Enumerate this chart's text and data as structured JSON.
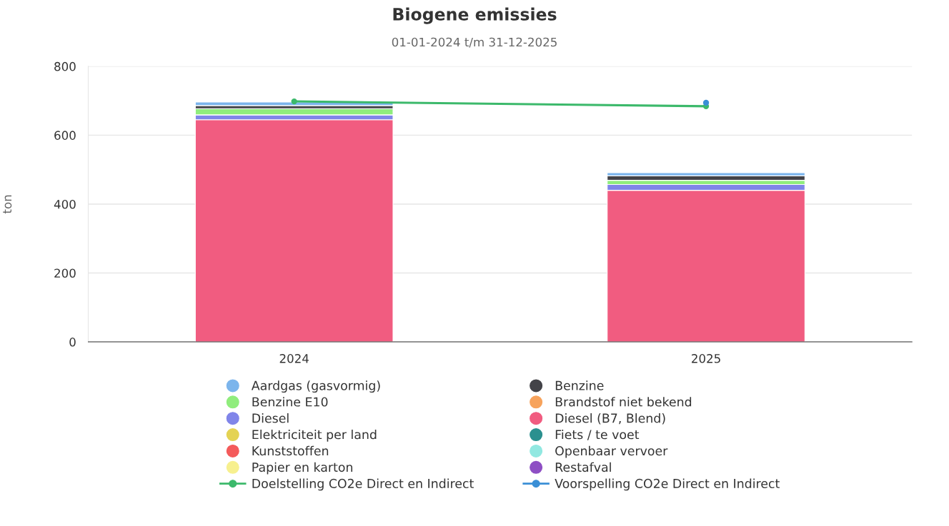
{
  "chart_data": {
    "type": "bar",
    "title": "Biogene emissies",
    "subtitle": "01-01-2024 t/m 31-12-2025",
    "ylabel": "ton",
    "categories": [
      "2024",
      "2025"
    ],
    "stacked": true,
    "ylim": [
      0,
      800
    ],
    "yticks": [
      0,
      200,
      400,
      600,
      800
    ],
    "grid": "y",
    "legend": "bottom",
    "series": [
      {
        "name": "Restafval",
        "color": "#8e4fc4",
        "values": [
          0,
          0
        ]
      },
      {
        "name": "Papier en karton",
        "color": "#f7f08f",
        "values": [
          0,
          0
        ]
      },
      {
        "name": "Openbaar vervoer",
        "color": "#91e8e1",
        "values": [
          0,
          0
        ]
      },
      {
        "name": "Kunststoffen",
        "color": "#f45b5b",
        "values": [
          0,
          0
        ]
      },
      {
        "name": "Fiets / te voet",
        "color": "#2b908f",
        "values": [
          0,
          0
        ]
      },
      {
        "name": "Elektriciteit per land",
        "color": "#e4d354",
        "values": [
          0,
          0
        ]
      },
      {
        "name": "Diesel (B7, Blend)",
        "color": "#f15c80",
        "values": [
          645,
          440
        ]
      },
      {
        "name": "Diesel",
        "color": "#8085e9",
        "values": [
          14,
          17
        ]
      },
      {
        "name": "Brandstof niet bekend",
        "color": "#f7a35c",
        "values": [
          0,
          0
        ]
      },
      {
        "name": "Benzine E10",
        "color": "#90ed7d",
        "values": [
          18,
          12
        ]
      },
      {
        "name": "Benzine",
        "color": "#434348",
        "values": [
          9,
          13
        ]
      },
      {
        "name": "Aardgas (gasvormig)",
        "color": "#7cb5ec",
        "values": [
          10,
          9
        ]
      },
      {
        "name": "Doelstelling CO2e Direct en Indirect",
        "type": "line",
        "color": "#3cb96b",
        "marker": "circle",
        "values": [
          698,
          684
        ]
      },
      {
        "name": "Voorspelling CO2e Direct en Indirect",
        "type": "line",
        "color": "#3a8fd6",
        "marker": "circle",
        "values": [
          null,
          694
        ]
      }
    ]
  }
}
